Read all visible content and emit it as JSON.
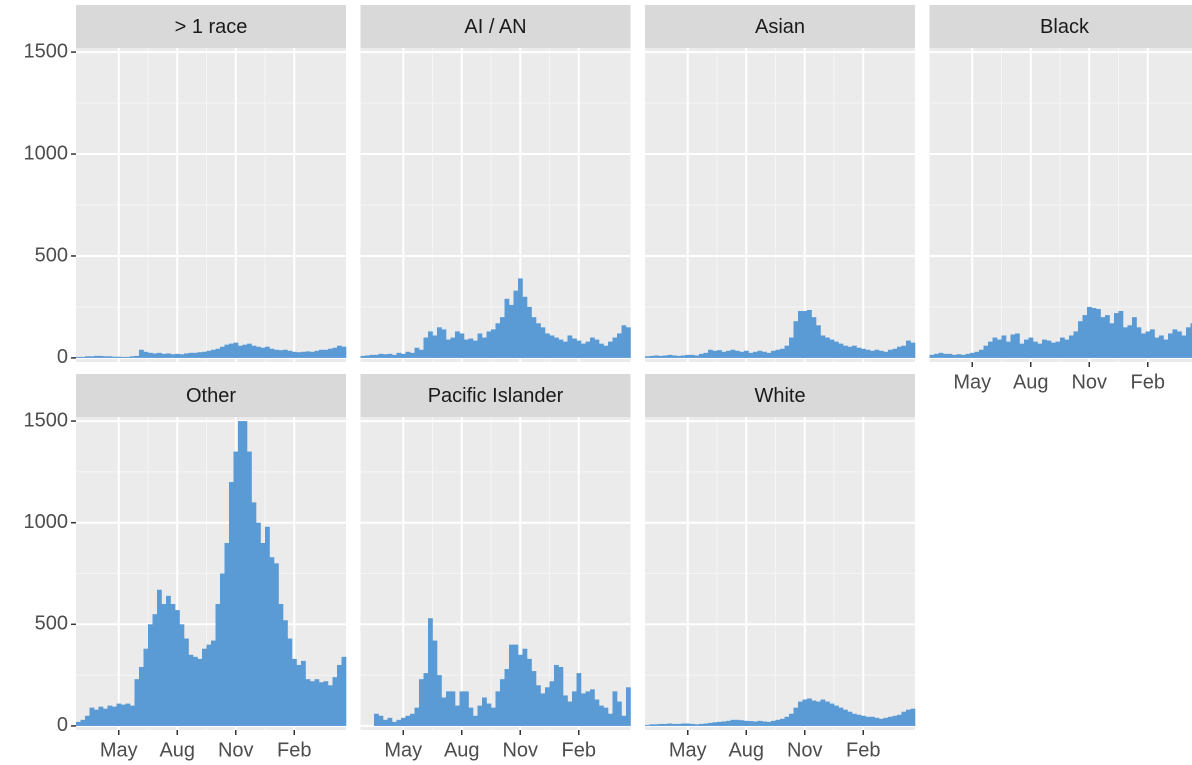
{
  "chart_data": {
    "type": "bar",
    "color": "#5b9bd5",
    "grid": true,
    "ylim": [
      -20,
      1520
    ],
    "yticks": [
      0,
      500,
      1000,
      1500
    ],
    "categories": [
      null,
      null,
      null,
      null,
      null,
      null,
      null,
      null,
      null,
      "May",
      null,
      null,
      null,
      null,
      null,
      null,
      null,
      null,
      null,
      null,
      null,
      null,
      "Aug",
      null,
      null,
      null,
      null,
      null,
      null,
      null,
      null,
      null,
      null,
      null,
      null,
      "Nov",
      null,
      null,
      null,
      null,
      null,
      null,
      null,
      null,
      null,
      null,
      null,
      null,
      "Feb",
      null,
      null,
      null,
      null,
      null,
      null,
      null,
      null,
      null,
      null,
      null
    ],
    "panels": [
      {
        "title": "> 1 race",
        "values": [
          5,
          5,
          8,
          8,
          10,
          10,
          8,
          8,
          6,
          6,
          5,
          5,
          8,
          10,
          40,
          30,
          25,
          22,
          25,
          20,
          22,
          18,
          20,
          18,
          22,
          25,
          25,
          28,
          30,
          35,
          40,
          45,
          55,
          65,
          70,
          75,
          60,
          65,
          70,
          60,
          55,
          50,
          55,
          45,
          40,
          38,
          40,
          35,
          30,
          28,
          30,
          32,
          30,
          35,
          40,
          40,
          45,
          50,
          60,
          55
        ]
      },
      {
        "title": "AI / AN",
        "values": [
          10,
          12,
          15,
          15,
          20,
          18,
          20,
          15,
          25,
          20,
          30,
          25,
          50,
          40,
          100,
          130,
          110,
          150,
          140,
          90,
          100,
          130,
          120,
          90,
          95,
          85,
          120,
          100,
          130,
          140,
          170,
          200,
          290,
          260,
          330,
          390,
          300,
          250,
          200,
          170,
          150,
          120,
          110,
          100,
          90,
          80,
          110,
          95,
          85,
          70,
          80,
          100,
          90,
          70,
          60,
          80,
          100,
          120,
          160,
          150
        ]
      },
      {
        "title": "Asian",
        "values": [
          8,
          10,
          12,
          10,
          12,
          15,
          12,
          10,
          12,
          15,
          15,
          12,
          20,
          25,
          40,
          35,
          38,
          30,
          35,
          40,
          35,
          30,
          35,
          25,
          30,
          35,
          30,
          25,
          35,
          40,
          45,
          60,
          100,
          180,
          230,
          230,
          235,
          200,
          160,
          110,
          100,
          90,
          80,
          70,
          60,
          55,
          60,
          50,
          45,
          40,
          35,
          40,
          35,
          30,
          40,
          45,
          55,
          60,
          85,
          75
        ]
      },
      {
        "title": "Black",
        "values": [
          15,
          20,
          25,
          20,
          20,
          15,
          18,
          15,
          20,
          25,
          30,
          40,
          60,
          80,
          100,
          90,
          110,
          80,
          115,
          120,
          70,
          90,
          100,
          80,
          70,
          90,
          85,
          75,
          80,
          100,
          90,
          110,
          130,
          180,
          210,
          250,
          245,
          240,
          200,
          210,
          170,
          220,
          230,
          150,
          160,
          200,
          150,
          120,
          130,
          140,
          100,
          110,
          90,
          120,
          140,
          130,
          110,
          150,
          170,
          160
        ]
      },
      {
        "title": "Other",
        "values": [
          20,
          30,
          50,
          90,
          80,
          95,
          85,
          100,
          95,
          110,
          105,
          110,
          100,
          230,
          290,
          380,
          500,
          550,
          670,
          600,
          640,
          600,
          570,
          500,
          430,
          350,
          340,
          330,
          380,
          400,
          420,
          600,
          750,
          900,
          1200,
          1350,
          1500,
          1500,
          1350,
          1100,
          1000,
          900,
          980,
          830,
          800,
          600,
          520,
          430,
          330,
          300,
          320,
          230,
          220,
          230,
          215,
          220,
          200,
          240,
          300,
          340
        ]
      },
      {
        "title": "Pacific Islander",
        "values": [
          0,
          0,
          0,
          60,
          50,
          30,
          40,
          20,
          30,
          40,
          50,
          60,
          90,
          230,
          260,
          530,
          420,
          250,
          140,
          170,
          170,
          100,
          170,
          170,
          90,
          50,
          100,
          140,
          110,
          90,
          170,
          230,
          280,
          400,
          400,
          350,
          380,
          330,
          270,
          200,
          160,
          190,
          220,
          300,
          290,
          150,
          120,
          170,
          260,
          160,
          170,
          180,
          130,
          100,
          90,
          60,
          170,
          120,
          50,
          190
        ]
      },
      {
        "title": "White",
        "values": [
          5,
          8,
          8,
          10,
          10,
          12,
          10,
          10,
          12,
          12,
          10,
          8,
          10,
          12,
          15,
          18,
          20,
          22,
          25,
          30,
          30,
          28,
          25,
          24,
          22,
          25,
          22,
          20,
          25,
          30,
          35,
          45,
          60,
          90,
          120,
          130,
          135,
          125,
          120,
          130,
          120,
          110,
          100,
          90,
          80,
          70,
          60,
          55,
          50,
          45,
          45,
          40,
          35,
          40,
          45,
          50,
          55,
          70,
          80,
          85
        ]
      }
    ]
  }
}
